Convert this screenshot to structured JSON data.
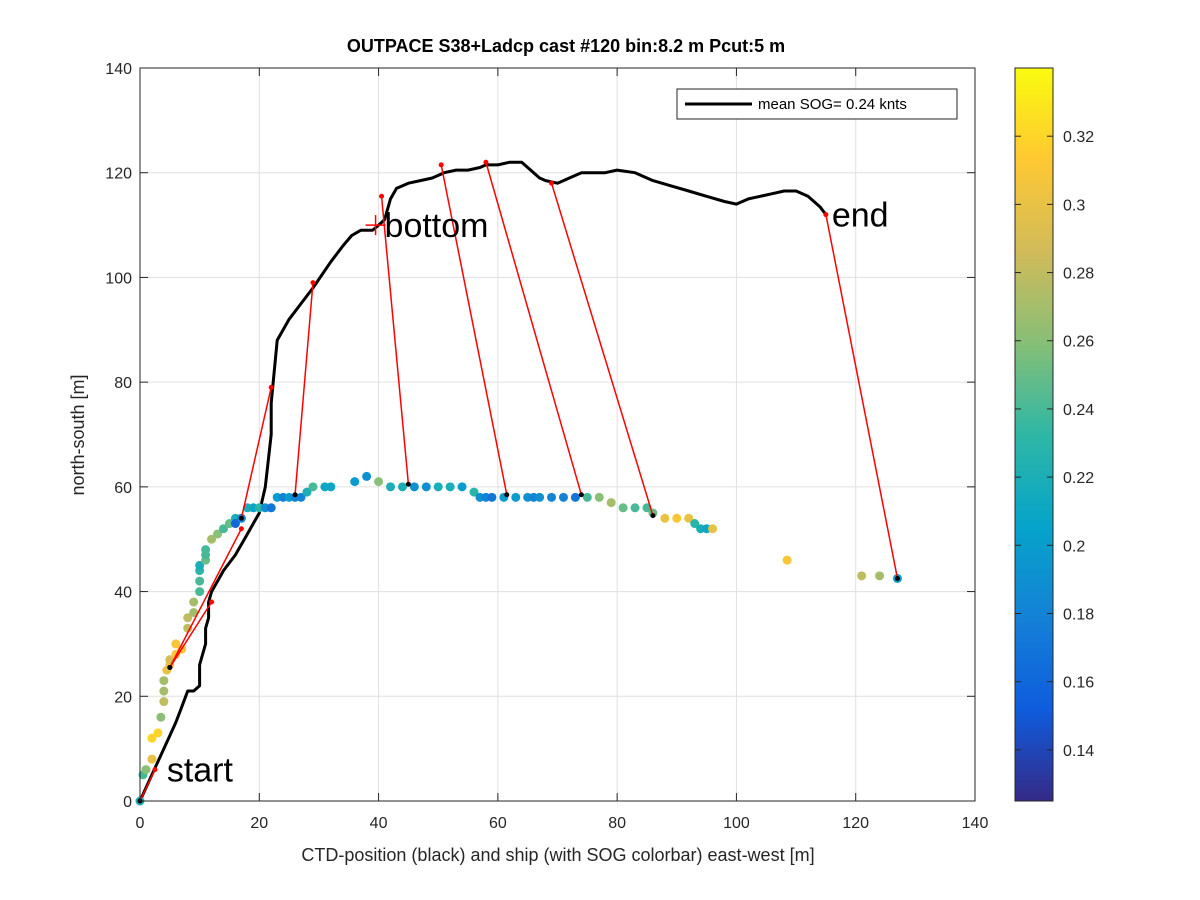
{
  "chart_data": {
    "type": "scatter",
    "title": "OUTPACE S38+Ladcp cast #120 bin:8.2 m  Pcut:5 m",
    "xlabel": "CTD-position (black) and ship (with SOG colorbar) east-west [m]",
    "ylabel": "north-south [m]",
    "xlim": [
      0,
      140
    ],
    "ylim": [
      0,
      140
    ],
    "x_ticks": [
      "0",
      "20",
      "40",
      "60",
      "80",
      "100",
      "120",
      "140"
    ],
    "y_ticks": [
      "0",
      "20",
      "40",
      "60",
      "80",
      "100",
      "120",
      "140"
    ],
    "grid": true,
    "legend": {
      "position": "top-right",
      "entries": [
        "mean SOG=  0.24 knts"
      ]
    },
    "annotations": [
      {
        "text": "start",
        "x": 4.5,
        "y": 6
      },
      {
        "text": "bottom",
        "x": 41,
        "y": 110
      },
      {
        "text": "end",
        "x": 116,
        "y": 112
      }
    ],
    "bottom_marker": {
      "x": 39.5,
      "y": 110
    },
    "colorbar": {
      "min": 0.125,
      "max": 0.34,
      "ticks": [
        "0.14",
        "0.16",
        "0.18",
        "0.2",
        "0.22",
        "0.24",
        "0.26",
        "0.28",
        "0.3",
        "0.32"
      ],
      "colormap": [
        "#352a87",
        "#0f5cdd",
        "#1481d6",
        "#06a4ca",
        "#2eb7a4",
        "#87bf77",
        "#d1bb59",
        "#fec832",
        "#f9fb0e"
      ]
    },
    "series": [
      {
        "kind": "ctd_track",
        "color": "#000000",
        "x": [
          0,
          2,
          4,
          6,
          7,
          8,
          9,
          10,
          10,
          11,
          11,
          11.5,
          11.5,
          12,
          14,
          16,
          18,
          19,
          20,
          21,
          22,
          22,
          22.5,
          23,
          25,
          27,
          29,
          32,
          34,
          35.5,
          37,
          39,
          40,
          41,
          41.5,
          42,
          43,
          45,
          47,
          49,
          51,
          53,
          55,
          57,
          58,
          60,
          62,
          64,
          65,
          66,
          67,
          68,
          70,
          72,
          74,
          76,
          78,
          80,
          83,
          86,
          89,
          92,
          95,
          98,
          100,
          102,
          104,
          106,
          108,
          110,
          112,
          114,
          115
        ],
        "y": [
          0,
          5,
          10,
          15,
          18,
          21,
          21,
          22,
          26,
          30,
          33,
          35,
          38,
          40,
          44,
          47,
          51,
          53,
          55,
          60,
          70,
          76,
          82,
          88,
          92,
          95,
          98,
          103,
          106,
          108,
          109,
          109,
          110,
          111,
          113,
          115,
          117,
          118,
          118.5,
          119,
          120,
          120.5,
          120.5,
          121,
          121.5,
          121.5,
          122,
          122,
          121,
          120,
          119,
          118.5,
          118,
          119,
          120,
          120,
          120,
          120.5,
          120,
          118.5,
          117.5,
          116.5,
          115.5,
          114.5,
          114,
          115,
          115.5,
          116,
          116.5,
          116.5,
          115.5,
          113.5,
          112
        ]
      },
      {
        "kind": "ship_sog",
        "x": [
          0,
          0.5,
          1,
          2,
          2,
          3,
          3.5,
          4,
          4,
          4,
          4.5,
          5,
          5,
          6,
          6,
          7,
          8,
          8,
          9,
          9,
          10,
          10,
          10,
          10,
          11,
          11,
          11,
          12,
          13,
          14,
          15,
          16,
          16,
          17,
          18,
          19,
          20,
          21,
          22,
          23,
          24,
          25,
          26,
          27,
          28,
          29,
          31,
          32,
          36,
          38,
          40,
          42,
          44,
          46,
          48,
          50,
          52,
          54,
          56,
          57,
          58,
          59,
          61,
          63,
          65,
          66,
          67,
          69,
          71,
          73,
          75,
          77,
          79,
          81,
          83,
          85,
          86,
          88,
          90,
          92,
          93,
          94,
          95,
          96,
          108.5,
          121,
          124,
          127
        ],
        "y": [
          0,
          5,
          6,
          8,
          12,
          13,
          16,
          19,
          21,
          23,
          25,
          26,
          27,
          28,
          30,
          29,
          33,
          35,
          36,
          38,
          40,
          42,
          44,
          45,
          46,
          47,
          48,
          50,
          51,
          52,
          53,
          54,
          53,
          54,
          56,
          56,
          56,
          56,
          56,
          58,
          58,
          58,
          58,
          58,
          59,
          60,
          60,
          60,
          61,
          62,
          61,
          60,
          60,
          60,
          60,
          60,
          60,
          60,
          59,
          58,
          58,
          58,
          58,
          58,
          58,
          58,
          58,
          58,
          58,
          58,
          58,
          58,
          57,
          56,
          56,
          56,
          55,
          54,
          54,
          54,
          53,
          52,
          52,
          52,
          46,
          43,
          43,
          42.5
        ],
        "sog": [
          0.22,
          0.24,
          0.26,
          0.3,
          0.32,
          0.32,
          0.26,
          0.28,
          0.27,
          0.27,
          0.3,
          0.3,
          0.29,
          0.31,
          0.31,
          0.31,
          0.28,
          0.28,
          0.27,
          0.27,
          0.24,
          0.24,
          0.23,
          0.22,
          0.25,
          0.24,
          0.24,
          0.27,
          0.26,
          0.24,
          0.25,
          0.22,
          0.16,
          0.18,
          0.22,
          0.21,
          0.23,
          0.19,
          0.17,
          0.2,
          0.18,
          0.2,
          0.18,
          0.18,
          0.22,
          0.24,
          0.21,
          0.21,
          0.2,
          0.19,
          0.26,
          0.22,
          0.22,
          0.19,
          0.19,
          0.22,
          0.22,
          0.2,
          0.23,
          0.19,
          0.18,
          0.17,
          0.2,
          0.2,
          0.19,
          0.18,
          0.19,
          0.18,
          0.18,
          0.17,
          0.24,
          0.26,
          0.27,
          0.25,
          0.24,
          0.24,
          0.25,
          0.3,
          0.31,
          0.3,
          0.23,
          0.22,
          0.21,
          0.3,
          0.31,
          0.28,
          0.27,
          0.2
        ]
      },
      {
        "kind": "connectors",
        "color": "#ff0000",
        "pairs": [
          [
            [
              2.5,
              6
            ],
            [
              0,
              0
            ]
          ],
          [
            [
              12,
              38
            ],
            [
              5,
              25.5
            ]
          ],
          [
            [
              17,
              52
            ],
            [
              5,
              25.5
            ]
          ],
          [
            [
              22,
              79
            ],
            [
              17,
              54
            ]
          ],
          [
            [
              29,
              99
            ],
            [
              26,
              58.5
            ]
          ],
          [
            [
              40.5,
              115.5
            ],
            [
              45,
              60.5
            ]
          ],
          [
            [
              50.5,
              121.5
            ],
            [
              61.5,
              58.5
            ]
          ],
          [
            [
              58,
              122
            ],
            [
              74,
              58.5
            ]
          ],
          [
            [
              69,
              118
            ],
            [
              86,
              54.5
            ]
          ],
          [
            [
              115,
              112
            ],
            [
              127,
              42.5
            ]
          ]
        ]
      }
    ]
  }
}
